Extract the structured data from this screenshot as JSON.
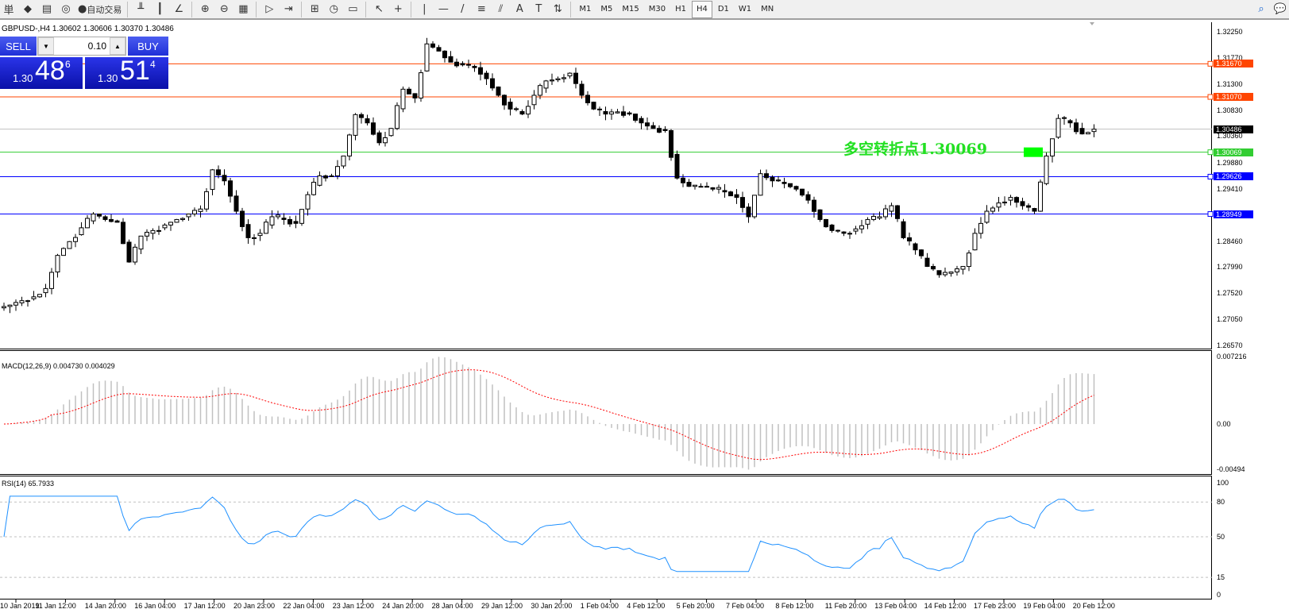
{
  "toolbar": {
    "items": [
      {
        "name": "new-order-icon",
        "glyph": "単"
      },
      {
        "name": "market-watch-icon",
        "glyph": "◆"
      },
      {
        "name": "navigator-icon",
        "glyph": "▤"
      },
      {
        "name": "signals-icon",
        "glyph": "◎"
      },
      {
        "name": "auto-trading-icon",
        "glyph": "●",
        "label": "自动交易"
      }
    ],
    "chart_tools": [
      "bar-chart-icon",
      "candlestick-icon",
      "line-chart-icon",
      "zoom-in-icon",
      "zoom-out-icon",
      "tile-windows-icon",
      "autoscroll-icon",
      "chart-shift-icon",
      "indicators-icon",
      "periods-icon",
      "templates-icon",
      "cursor-icon",
      "crosshair-icon",
      "vertical-line-icon",
      "horizontal-line-icon",
      "trendline-icon",
      "fibonacci-icon",
      "equidistant-channel-icon",
      "text-icon",
      "text-label-icon",
      "arrows-icon"
    ],
    "timeframes": [
      "M1",
      "M5",
      "M15",
      "M30",
      "H1",
      "H4",
      "D1",
      "W1",
      "MN"
    ],
    "active_timeframe": "H4"
  },
  "chart": {
    "title": "GBPUSD-,H4  1.30602 1.30606 1.30370 1.30486",
    "trade": {
      "sell": "SELL",
      "buy": "BUY",
      "lot": "0.10",
      "sell_pre": "1.30",
      "sell_big": "48",
      "sell_sup": "6",
      "buy_pre": "1.30",
      "buy_big": "51",
      "buy_sup": "4"
    },
    "annotation": "多空转折点1.30069",
    "macd_label": "MACD(12,26,9) 0.004730 0.004029",
    "rsi_label": "RSI(14) 65.7933"
  },
  "chart_data": {
    "type": "candlestick",
    "symbol": "GBPUSD-",
    "timeframe": "H4",
    "price_ticks": [
      "1.32250",
      "1.31770",
      "1.31300",
      "1.30830",
      "1.30360",
      "1.29880",
      "1.29410",
      "1.28460",
      "1.27990",
      "1.27520",
      "1.27050",
      "1.26570"
    ],
    "ylim": [
      1.2657,
      1.3225
    ],
    "hlines": [
      {
        "price": "1.31670",
        "color": "#ff4500"
      },
      {
        "price": "1.31070",
        "color": "#ff4500"
      },
      {
        "price": "1.30486",
        "color": "#000000",
        "line": "#c0c0c0",
        "current": true
      },
      {
        "price": "1.30069",
        "color": "#32cd32"
      },
      {
        "price": "1.29626",
        "color": "#0000ff"
      },
      {
        "price": "1.28949",
        "color": "#0000ff"
      }
    ],
    "time_ticks": [
      "10 Jan 2019",
      "11 Jan 12:00",
      "14 Jan 20:00",
      "16 Jan 04:00",
      "17 Jan 12:00",
      "20 Jan 23:00",
      "22 Jan 04:00",
      "23 Jan 12:00",
      "24 Jan 20:00",
      "28 Jan 04:00",
      "29 Jan 12:00",
      "30 Jan 20:00",
      "1 Feb 04:00",
      "4 Feb 12:00",
      "5 Feb 20:00",
      "7 Feb 04:00",
      "8 Feb 12:00",
      "11 Feb 20:00",
      "13 Feb 04:00",
      "14 Feb 12:00",
      "17 Feb 23:00",
      "19 Feb 04:00",
      "20 Feb 12:00"
    ],
    "closes": [
      1.273,
      1.2738,
      1.2745,
      1.276,
      1.282,
      1.2845,
      1.287,
      1.2895,
      1.2885,
      1.288,
      1.2808,
      1.2855,
      1.2865,
      1.2875,
      1.2885,
      1.2895,
      1.2904,
      1.2975,
      1.2955,
      1.29,
      1.2852,
      1.286,
      1.289,
      1.2885,
      1.2878,
      1.293,
      1.2964,
      1.2964,
      1.3,
      1.3075,
      1.306,
      1.3024,
      1.305,
      1.3121,
      1.3105,
      1.3203,
      1.319,
      1.317,
      1.3165,
      1.316,
      1.314,
      1.311,
      1.3085,
      1.3076,
      1.311,
      1.3136,
      1.314,
      1.315,
      1.311,
      1.3085,
      1.3076,
      1.308,
      1.3076,
      1.306,
      1.305,
      1.3046,
      1.296,
      1.2945,
      1.2945,
      1.294,
      1.2935,
      1.2925,
      1.289,
      1.2968,
      1.2955,
      1.295,
      1.294,
      1.292,
      1.2885,
      1.2865,
      1.286,
      1.2868,
      1.2885,
      1.289,
      1.291,
      1.2852,
      1.283,
      1.28,
      1.2785,
      1.279,
      1.28,
      1.286,
      1.29,
      1.2915,
      1.2925,
      1.291,
      1.29,
      1.3,
      1.3068,
      1.306,
      1.304,
      1.30486
    ],
    "macd": {
      "ticks": [
        "0.007216",
        "0.00",
        "-0.00494"
      ],
      "range": [
        -0.00494,
        0.007216
      ],
      "histogram_color": "#c0c0c0",
      "signal_color": "#ff0000"
    },
    "rsi": {
      "ticks": [
        "100",
        "80",
        "50",
        "15",
        "0"
      ],
      "levels": [
        80,
        50,
        15
      ],
      "color": "#1e90ff"
    }
  }
}
